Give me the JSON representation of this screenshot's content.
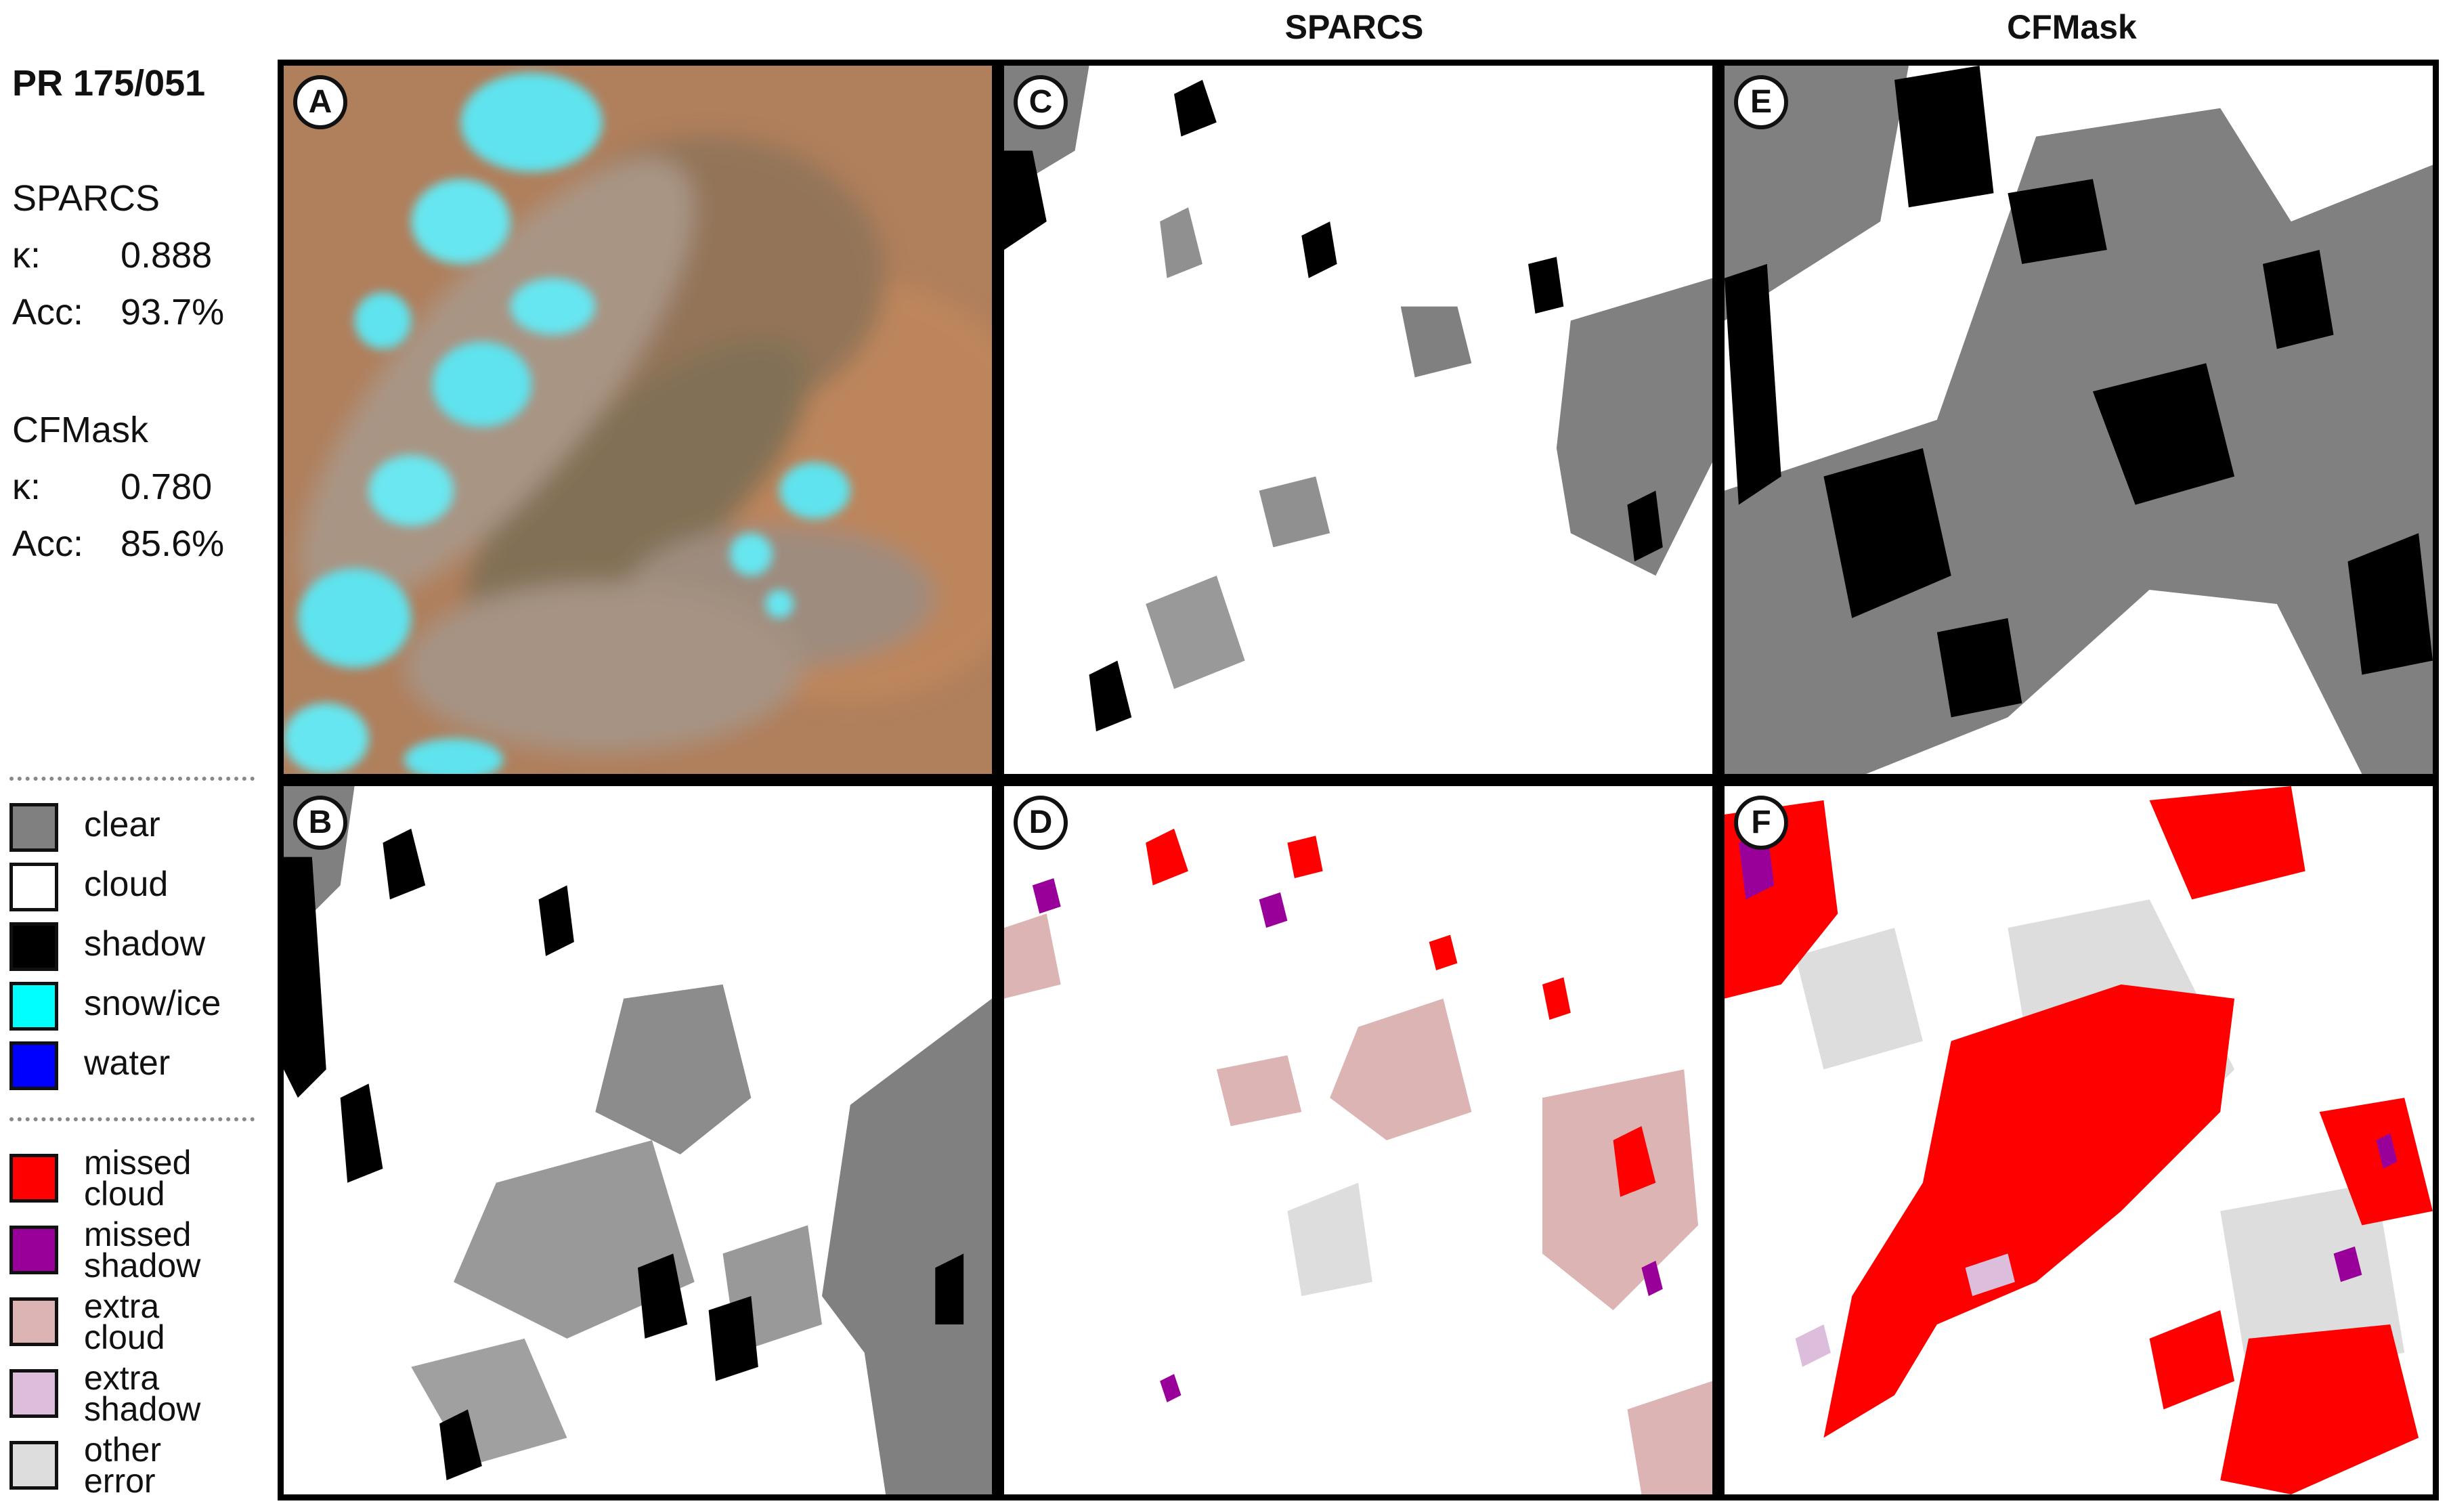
{
  "column_titles": [
    "SPARCS",
    "CFMask"
  ],
  "scene": "PR 175/051",
  "stats": [
    {
      "method": "SPARCS",
      "kappa_label": "κ:",
      "kappa": "0.888",
      "acc_label": "Acc:",
      "acc": "93.7%"
    },
    {
      "method": "CFMask",
      "kappa_label": "κ:",
      "kappa": "0.780",
      "acc_label": "Acc:",
      "acc": "85.6%"
    }
  ],
  "legend_classes": [
    {
      "label": "clear",
      "color": "#808080"
    },
    {
      "label": "cloud",
      "color": "#ffffff"
    },
    {
      "label": "shadow",
      "color": "#000000"
    },
    {
      "label": "snow/ice",
      "color": "#00ffff"
    },
    {
      "label": "water",
      "color": "#0000ff"
    }
  ],
  "legend_errors": [
    {
      "label": "missed\ncloud",
      "color": "#ff0000"
    },
    {
      "label": "missed\nshadow",
      "color": "#990099"
    },
    {
      "label": "extra\ncloud",
      "color": "#dcb4b4"
    },
    {
      "label": "extra\nshadow",
      "color": "#dcbedc"
    },
    {
      "label": "other\nerror",
      "color": "#dddddd"
    }
  ],
  "panels": [
    {
      "letter": "A",
      "type": "rgb"
    },
    {
      "letter": "B",
      "type": "mask"
    },
    {
      "letter": "C",
      "type": "mask"
    },
    {
      "letter": "D",
      "type": "error"
    },
    {
      "letter": "E",
      "type": "mask"
    },
    {
      "letter": "F",
      "type": "error"
    }
  ]
}
